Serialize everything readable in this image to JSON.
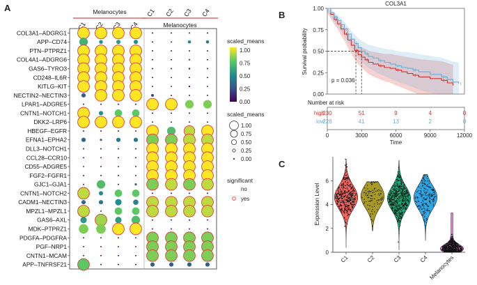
{
  "panels": {
    "a": "A",
    "b": "B",
    "c": "C"
  },
  "colors": {
    "group_line": "#e0474c",
    "sig_ring": "#e23b3b",
    "viridis": [
      "#440154",
      "#3b528b",
      "#21908c",
      "#5dc863",
      "#fde725"
    ],
    "high": "#d7322f",
    "low": "#6baed6",
    "violin": [
      "#f4625c",
      "#a89a22",
      "#15b07a",
      "#2ea7e6",
      "#f57bde"
    ]
  },
  "chart_data": [
    {
      "type": "dotplot",
      "panel": "A",
      "groups": [
        {
          "label": "Melanocytes",
          "columns": [
            "C1",
            "C2",
            "C3",
            "C4"
          ]
        },
        {
          "label": "Melanocytes",
          "columns": [
            "C1",
            "C2",
            "C3",
            "C4"
          ]
        }
      ],
      "rows": [
        "COL3A1–ADGRG1",
        "APP–CD74",
        "PTN–PTPRZ1",
        "COL4A1–ADGRG6",
        "GAS6–TYRO3",
        "CD248–IL6R",
        "KITLG–KIT",
        "NECTIN2–NECTIN3",
        "LPAR1–ADGRE5",
        "CNTN1–NOTCH1",
        "DKK2–LRP6",
        "HBEGF–EGFR",
        "EFNA1–EPHA2",
        "DLL3–NOTCH1",
        "CCL28–CCR10",
        "CD55–ADGRE5",
        "FGF2–FGFR1",
        "GJC1–GJA1",
        "CNTN1–NOTCH2",
        "CADM1–NECTIN3",
        "MPZL1–MPZL1",
        "GAS6–AXL",
        "MDK–PTPRZ1",
        "PDGFA–PDGFRA",
        "PGF–NRP1",
        "CNTN1–MCAM",
        "APP–TNFRSF21"
      ],
      "size_matrix": [
        [
          1,
          1,
          1,
          1,
          0.02,
          0.02,
          0.02,
          0.02
        ],
        [
          0.7,
          0.25,
          0.3,
          0.3,
          0.02,
          0.02,
          0.2,
          0.2
        ],
        [
          1,
          1,
          1,
          1,
          0.02,
          0.02,
          0.02,
          0.02
        ],
        [
          1,
          1,
          1,
          1,
          0.02,
          0.02,
          0.02,
          0.02
        ],
        [
          1,
          1,
          1,
          1,
          0.02,
          0.02,
          0.05,
          0.02
        ],
        [
          1,
          1,
          1,
          1,
          0.02,
          0.02,
          0.02,
          0.02
        ],
        [
          1,
          1,
          1,
          1,
          0.02,
          0.02,
          0.05,
          0.02
        ],
        [
          0.3,
          1,
          1,
          1,
          0.15,
          0.02,
          0.02,
          0.02
        ],
        [
          0.02,
          0.02,
          0.02,
          0.02,
          1,
          1,
          0.7,
          0.7
        ],
        [
          1,
          0.3,
          0.6,
          0.6,
          0.02,
          0.02,
          0.02,
          0.02
        ],
        [
          1,
          1,
          1,
          1,
          0.02,
          0.02,
          0.02,
          0.02
        ],
        [
          0.02,
          0.02,
          0.02,
          0.02,
          1,
          0.7,
          0.9,
          1
        ],
        [
          0.3,
          0.1,
          0.3,
          0.3,
          1,
          1,
          1,
          1
        ],
        [
          0.02,
          0.02,
          0.02,
          0.02,
          1,
          1,
          1,
          1
        ],
        [
          0.02,
          0.02,
          0.02,
          0.02,
          1,
          1,
          1,
          1
        ],
        [
          0.02,
          0.02,
          0.02,
          0.02,
          1,
          1,
          1,
          1
        ],
        [
          0.02,
          0.02,
          0.02,
          0.02,
          1,
          1,
          1,
          1
        ],
        [
          0.02,
          0.7,
          0.02,
          0.1,
          1,
          1,
          1,
          1
        ],
        [
          1,
          0.3,
          0.6,
          0.6,
          0.02,
          0.02,
          0.02,
          0.02
        ],
        [
          0.3,
          0.3,
          0.5,
          0.4,
          1,
          1,
          1,
          1
        ],
        [
          1,
          0.02,
          0.6,
          0.6,
          1,
          1,
          1,
          1
        ],
        [
          0.5,
          1,
          0.5,
          0.7,
          0.02,
          0.02,
          0.02,
          0.02
        ],
        [
          0.8,
          0.8,
          1,
          1,
          0.02,
          0.02,
          0.02,
          0.02
        ],
        [
          0.02,
          0.02,
          0.02,
          0.02,
          1,
          1,
          1,
          1
        ],
        [
          0.02,
          0.02,
          0.02,
          0.02,
          1,
          1,
          1,
          1
        ],
        [
          0.02,
          0.02,
          0.02,
          0.02,
          1,
          1,
          1,
          1
        ],
        [
          1,
          0.02,
          0.02,
          0.02,
          0.3,
          0.3,
          0.3,
          0.3
        ]
      ],
      "color_matrix": [
        [
          1,
          1,
          1,
          1,
          0,
          0,
          0,
          0
        ],
        [
          0.65,
          0.5,
          0.55,
          0.5,
          0,
          0,
          0.5,
          0.4
        ],
        [
          1,
          1,
          1,
          1,
          0,
          0,
          0,
          0
        ],
        [
          1,
          1,
          1,
          1,
          0,
          0,
          0,
          0
        ],
        [
          1,
          1,
          1,
          1,
          0,
          0,
          0,
          0
        ],
        [
          1,
          1,
          1,
          1,
          0,
          0,
          0,
          0
        ],
        [
          1,
          1,
          1,
          1,
          0,
          0,
          0,
          0
        ],
        [
          0.3,
          1,
          1,
          1,
          0.2,
          0,
          0,
          0
        ],
        [
          0,
          0,
          0,
          0,
          1,
          1,
          0.8,
          0.8
        ],
        [
          1,
          0.5,
          0.75,
          0.75,
          0,
          0,
          0,
          0
        ],
        [
          1,
          1,
          1,
          1,
          0,
          0,
          0,
          0
        ],
        [
          0,
          0,
          0,
          0,
          1,
          0.7,
          0.9,
          1
        ],
        [
          0.3,
          0.3,
          0.4,
          0.4,
          0.8,
          0.8,
          0.9,
          0.9
        ],
        [
          0,
          0,
          0,
          0,
          1,
          1,
          1,
          1
        ],
        [
          0,
          0,
          0,
          0,
          1,
          1,
          1,
          1
        ],
        [
          0,
          0,
          0,
          0,
          1,
          1,
          1,
          1
        ],
        [
          0,
          0,
          0,
          0,
          1,
          1,
          1,
          1
        ],
        [
          0,
          0.7,
          0,
          0.3,
          0.8,
          0.9,
          0.8,
          0.9
        ],
        [
          0.9,
          0.5,
          0.75,
          0.75,
          0,
          0,
          0,
          0
        ],
        [
          0.35,
          0.4,
          0.5,
          0.45,
          0.9,
          0.9,
          0.9,
          0.9
        ],
        [
          0.9,
          0,
          0.75,
          0.75,
          0.9,
          0.9,
          0.9,
          0.9
        ],
        [
          0.55,
          0.85,
          0.55,
          0.7,
          0,
          0,
          0,
          0
        ],
        [
          0.8,
          0.8,
          1,
          1,
          0,
          0,
          0,
          0
        ],
        [
          0,
          0,
          0,
          0,
          0.8,
          0.8,
          0.8,
          0.8
        ],
        [
          0,
          0,
          0,
          0,
          0.8,
          0.8,
          0.8,
          0.8
        ],
        [
          0,
          0,
          0,
          0,
          0.8,
          0.8,
          0.8,
          0.8
        ],
        [
          0.75,
          0,
          0,
          0,
          0.3,
          0.3,
          0.3,
          0.3
        ]
      ],
      "significant_threshold": 0.9,
      "legend": {
        "color_title": "scaled_means",
        "color_ticks": [
          "1.00",
          "0.75",
          "0.50",
          "0.25",
          "0.00"
        ],
        "size_title": "scaled_means",
        "size_ticks": [
          "1.00",
          "0.75",
          "0.50",
          "0.25",
          "0.00"
        ],
        "size_values": [
          1.0,
          0.75,
          0.5,
          0.25,
          0.0
        ],
        "sig_title": "significant",
        "sig_no": "no",
        "sig_yes": "yes"
      }
    },
    {
      "type": "line",
      "panel": "B",
      "title": "COL3A1",
      "ylabel": "Survival probability",
      "xlabel": "Time",
      "xlim": [
        0,
        12000
      ],
      "ylim": [
        0,
        1
      ],
      "xticks": [
        "0",
        "3000",
        "6000",
        "9000",
        "12000"
      ],
      "yticks": [
        "1.00",
        "0.75",
        "0.50",
        "0.25",
        "0.00"
      ],
      "pvalue": "p = 0.036",
      "series": [
        {
          "name": "high",
          "x": [
            0,
            300,
            600,
            900,
            1200,
            1500,
            1800,
            2100,
            2400,
            2700,
            3000,
            3300,
            3600,
            4000,
            4500,
            5000,
            5500,
            6000,
            6500,
            7000,
            7500,
            8000,
            9000,
            10000,
            10500,
            11000
          ],
          "y": [
            1.0,
            0.93,
            0.87,
            0.82,
            0.76,
            0.7,
            0.63,
            0.57,
            0.51,
            0.46,
            0.43,
            0.4,
            0.37,
            0.35,
            0.33,
            0.31,
            0.3,
            0.28,
            0.26,
            0.24,
            0.22,
            0.2,
            0.18,
            0.16,
            0.13,
            0.1
          ]
        },
        {
          "name": "low",
          "x": [
            0,
            300,
            600,
            900,
            1200,
            1500,
            1800,
            2100,
            2400,
            2700,
            3000,
            3300,
            3600,
            4000,
            4500,
            5000,
            5500,
            6000,
            6500,
            7000,
            7500,
            8000,
            9000,
            10000,
            10500,
            11000,
            11500
          ],
          "y": [
            1.0,
            0.95,
            0.9,
            0.86,
            0.81,
            0.76,
            0.7,
            0.64,
            0.59,
            0.54,
            0.5,
            0.47,
            0.44,
            0.42,
            0.39,
            0.37,
            0.35,
            0.33,
            0.31,
            0.3,
            0.28,
            0.26,
            0.23,
            0.2,
            0.17,
            0.14,
            0.12
          ]
        }
      ],
      "risk_table": {
        "title": "Number at risk",
        "rows": [
          {
            "name": "high",
            "values": [
              "230",
              "51",
              "9",
              "4",
              "0"
            ]
          },
          {
            "name": "low",
            "values": [
              "228",
              "41",
              "13",
              "2",
              "0"
            ]
          }
        ]
      }
    },
    {
      "type": "violin",
      "panel": "C",
      "ylabel": "Expression Level",
      "ylim": [
        0,
        8
      ],
      "yticks": [
        "0",
        "2",
        "4",
        "6"
      ],
      "categories": [
        "C1",
        "C2",
        "C3",
        "C4",
        "Melanocytes"
      ],
      "medians": [
        4.6,
        4.7,
        4.5,
        4.6,
        0.4
      ],
      "mins": [
        0.4,
        1.8,
        0.2,
        1.0,
        0.0
      ],
      "maxs": [
        7.8,
        5.9,
        7.7,
        6.5,
        3.3
      ],
      "point_counts": [
        380,
        90,
        520,
        180,
        700
      ]
    }
  ]
}
